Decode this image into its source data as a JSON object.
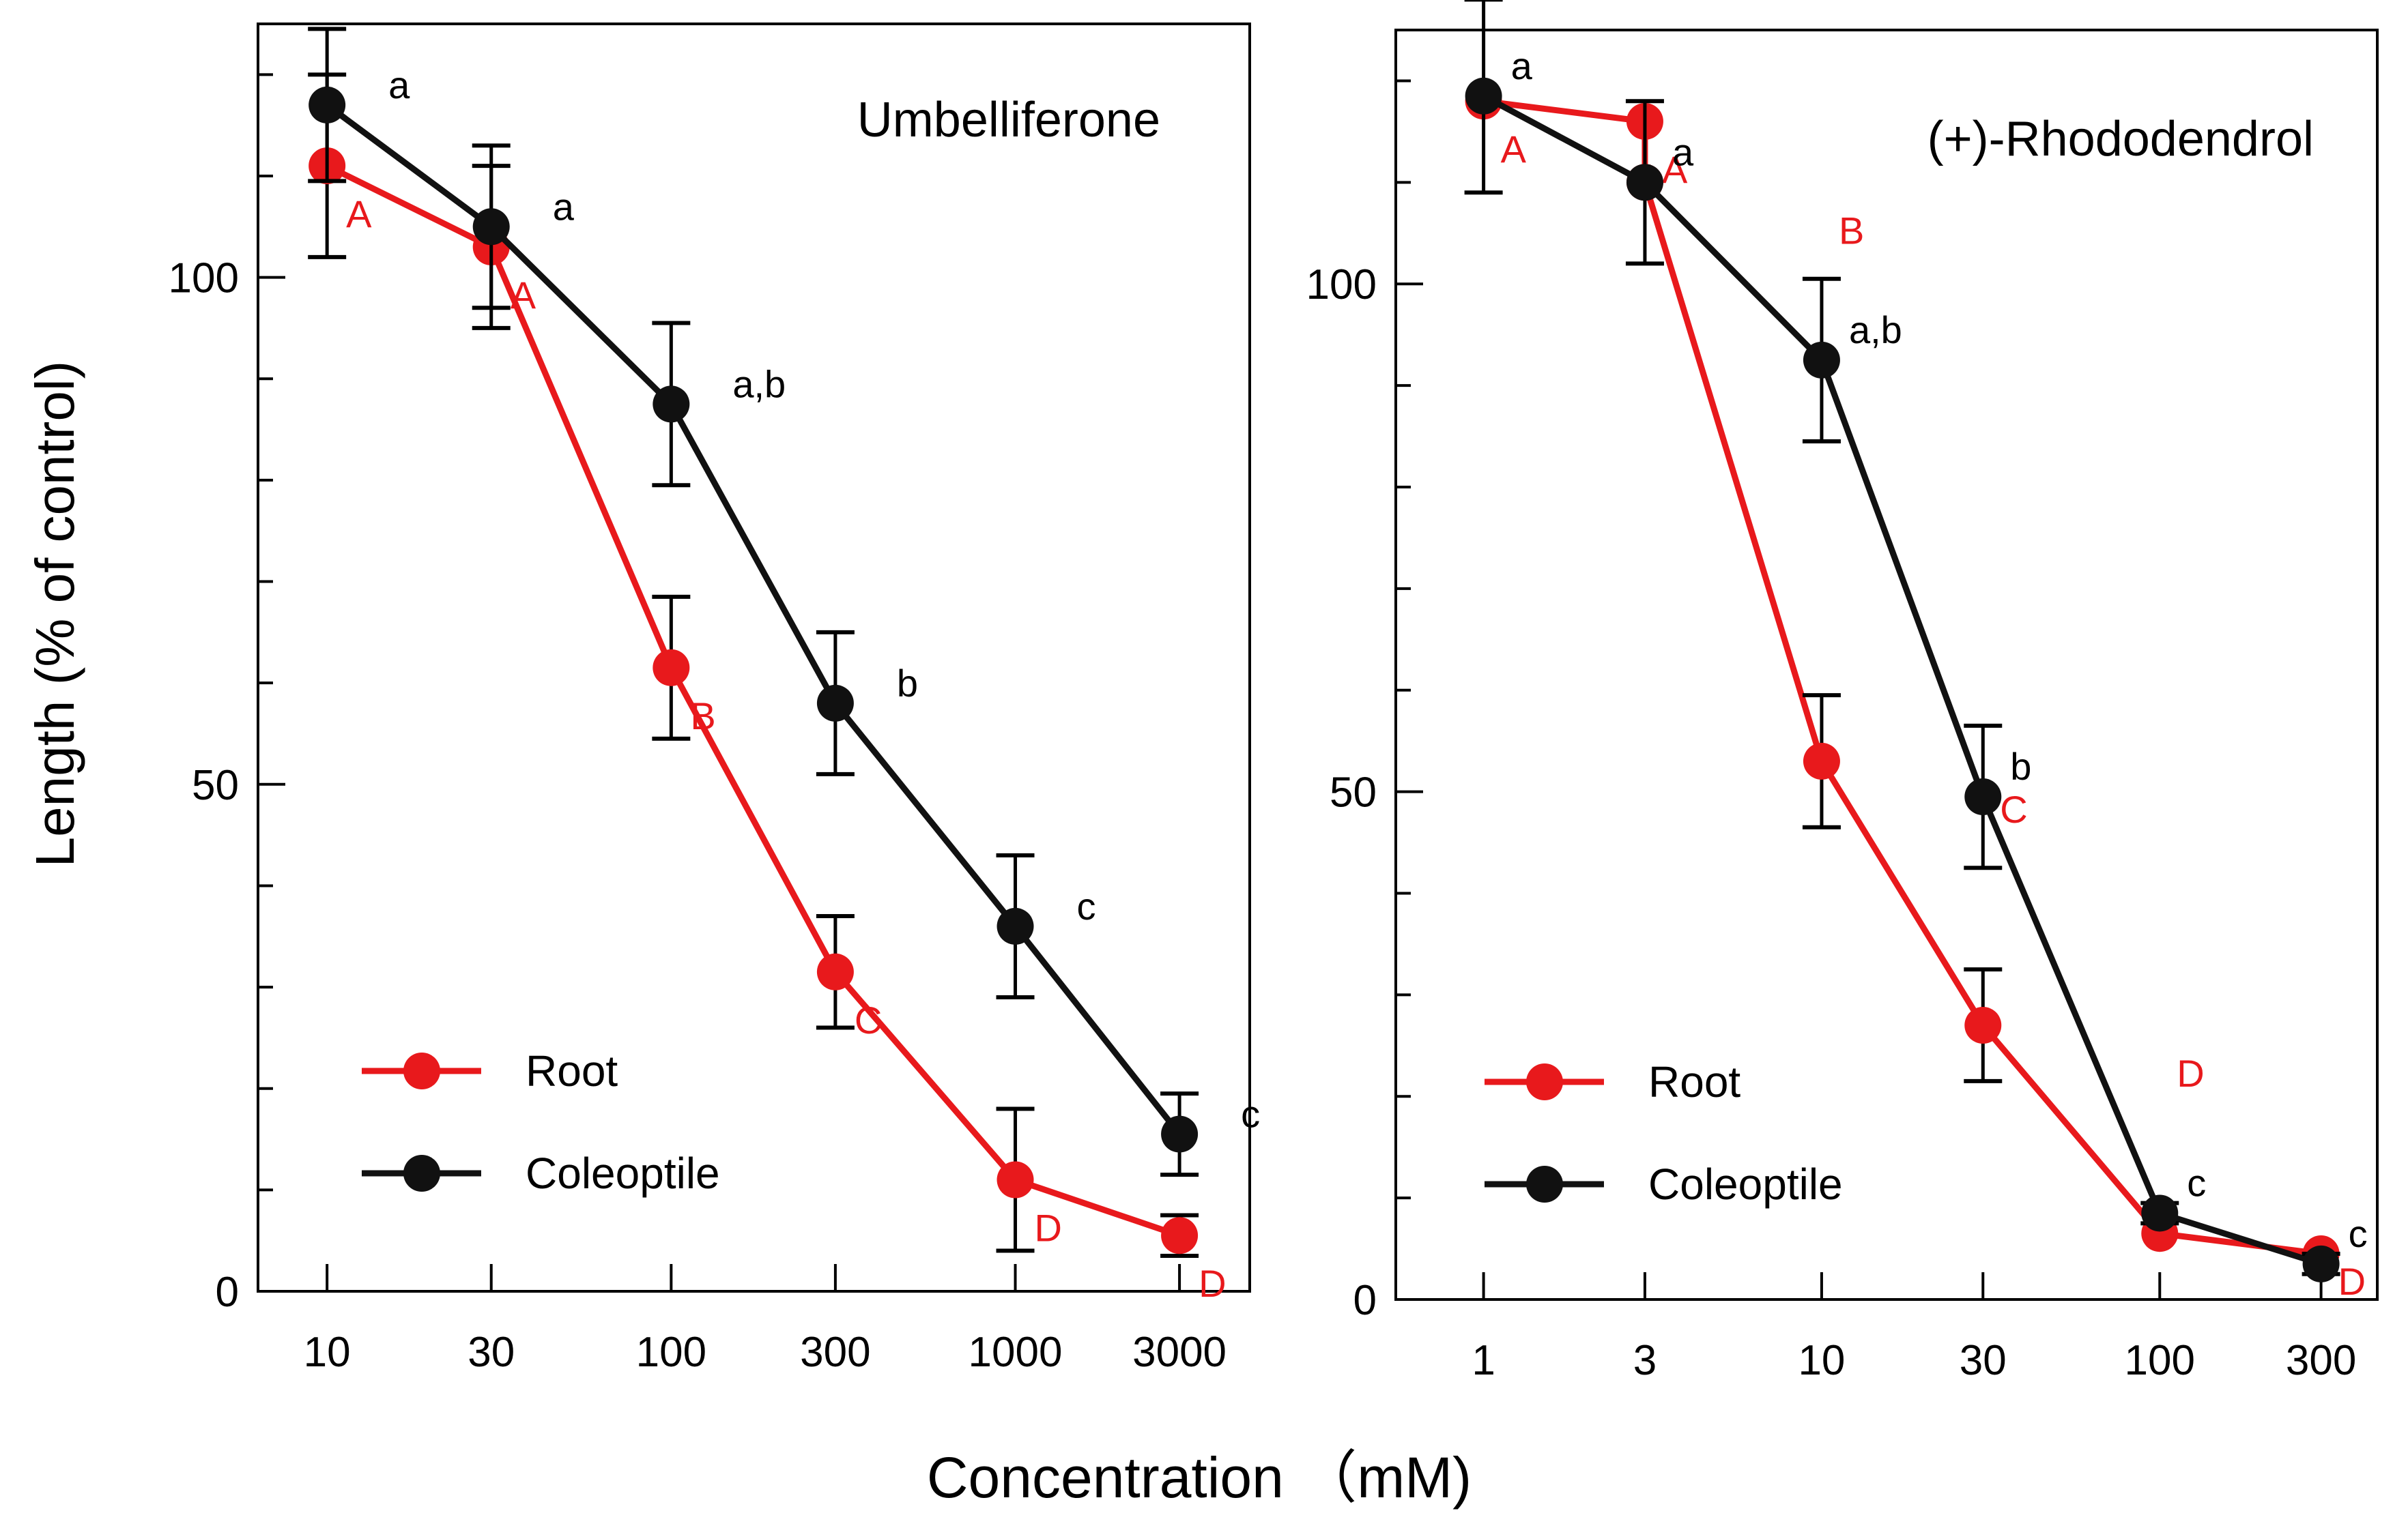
{
  "figure": {
    "ylabel": "Length  (% of control)",
    "xlabel": "Concentration （mM)"
  },
  "chart_data": [
    {
      "type": "line",
      "title": "Umbelliferone",
      "x_scale": "log",
      "categories": [
        "10",
        "30",
        "100",
        "300",
        "1000",
        "3000"
      ],
      "x": [
        10,
        30,
        100,
        300,
        1000,
        3000
      ],
      "xlim": [
        6.3,
        4800
      ],
      "ylim": [
        0,
        125
      ],
      "yticks": [
        0,
        50,
        100
      ],
      "minor_yticks": [
        10,
        20,
        30,
        40,
        60,
        70,
        80,
        90,
        110,
        120
      ],
      "series": [
        {
          "name": "Root",
          "color": "#e8191c",
          "values": [
            111,
            103,
            61.5,
            31.5,
            11,
            5.5
          ],
          "errors": [
            9,
            8,
            7,
            5.5,
            7,
            2
          ],
          "letters": [
            "A",
            "A",
            "B",
            "C",
            "D",
            "D"
          ]
        },
        {
          "name": "Coleoptile",
          "color": "#111111",
          "values": [
            117,
            105,
            87.5,
            58,
            36,
            15.5
          ],
          "errors": [
            7.5,
            8,
            8,
            7,
            7,
            4
          ],
          "letters": [
            "a",
            "a",
            "a,b",
            "b",
            "c",
            "c"
          ]
        }
      ]
    },
    {
      "type": "line",
      "title": "(+)-Rhododendrol",
      "x_scale": "log",
      "categories": [
        "1",
        "3",
        "10",
        "30",
        "100",
        "300"
      ],
      "x": [
        1,
        3,
        10,
        30,
        100,
        300
      ],
      "xlim": [
        0.55,
        440
      ],
      "ylim": [
        0,
        125
      ],
      "yticks": [
        0,
        50,
        100
      ],
      "minor_yticks": [
        10,
        20,
        30,
        40,
        60,
        70,
        80,
        90,
        110,
        120
      ],
      "series": [
        {
          "name": "Root",
          "color": "#e8191c",
          "values": [
            118,
            116,
            110,
            53,
            27,
            6.5,
            4.5
          ],
          "x": [
            1,
            3,
            3,
            10,
            30,
            100,
            300
          ],
          "errors": [
            null,
            null,
            null,
            6.5,
            5.5,
            null,
            null
          ],
          "letters": [
            "A",
            "A",
            "B",
            "C",
            "D",
            "D"
          ]
        },
        {
          "name": "Coleoptile",
          "color": "#111111",
          "values": [
            118.5,
            110,
            92.5,
            49.5,
            8.5,
            3.5
          ],
          "errors": [
            9.5,
            8,
            8,
            7,
            1,
            1
          ],
          "letters": [
            "a",
            "a",
            "a,b",
            "b",
            "c",
            "c"
          ]
        }
      ]
    }
  ]
}
